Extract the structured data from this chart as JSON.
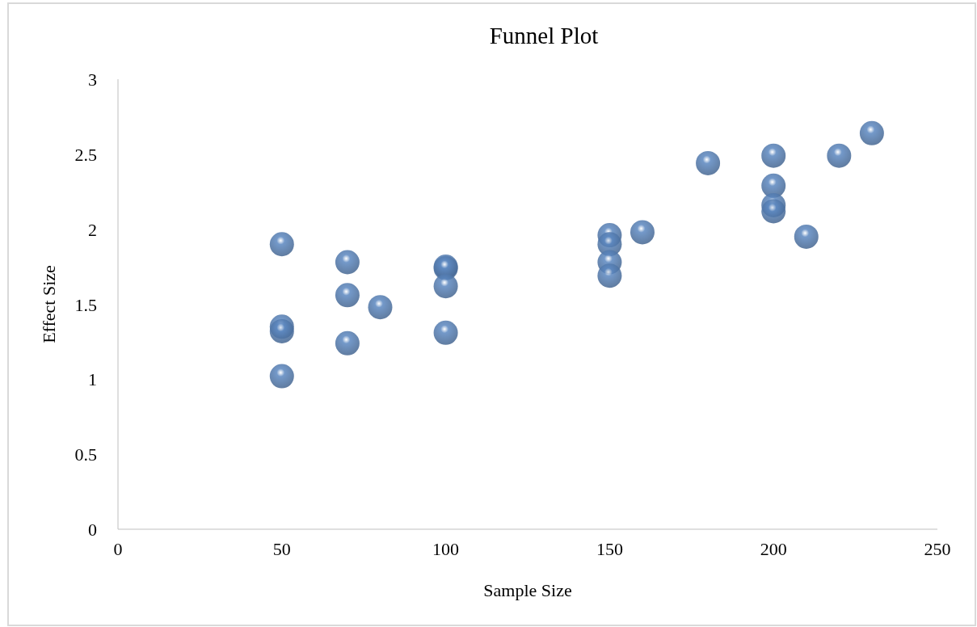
{
  "chart_data": {
    "type": "scatter",
    "title": "Funnel Plot",
    "xlabel": "Sample Size",
    "ylabel": "Effect Size",
    "x": [
      50,
      50,
      50,
      50,
      70,
      70,
      70,
      80,
      100,
      100,
      100,
      100,
      150,
      150,
      150,
      150,
      160,
      180,
      200,
      200,
      200,
      200,
      210,
      220,
      230
    ],
    "series": [
      {
        "color": "#5b87c0",
        "values": [
          1.9,
          1.35,
          1.32,
          1.02,
          1.78,
          1.56,
          1.24,
          1.48,
          1.75,
          1.74,
          1.62,
          1.31,
          1.96,
          1.9,
          1.78,
          1.69,
          1.98,
          2.44,
          2.49,
          2.29,
          2.16,
          2.12,
          1.95,
          2.49,
          2.64
        ]
      }
    ],
    "xlim": [
      0,
      250
    ],
    "xticks": [
      0,
      50,
      100,
      150,
      200,
      250
    ],
    "ylim": [
      0,
      3
    ],
    "yticks": [
      0,
      0.5,
      1,
      1.5,
      2,
      2.5,
      3
    ],
    "grid": false,
    "marker": "circle"
  }
}
